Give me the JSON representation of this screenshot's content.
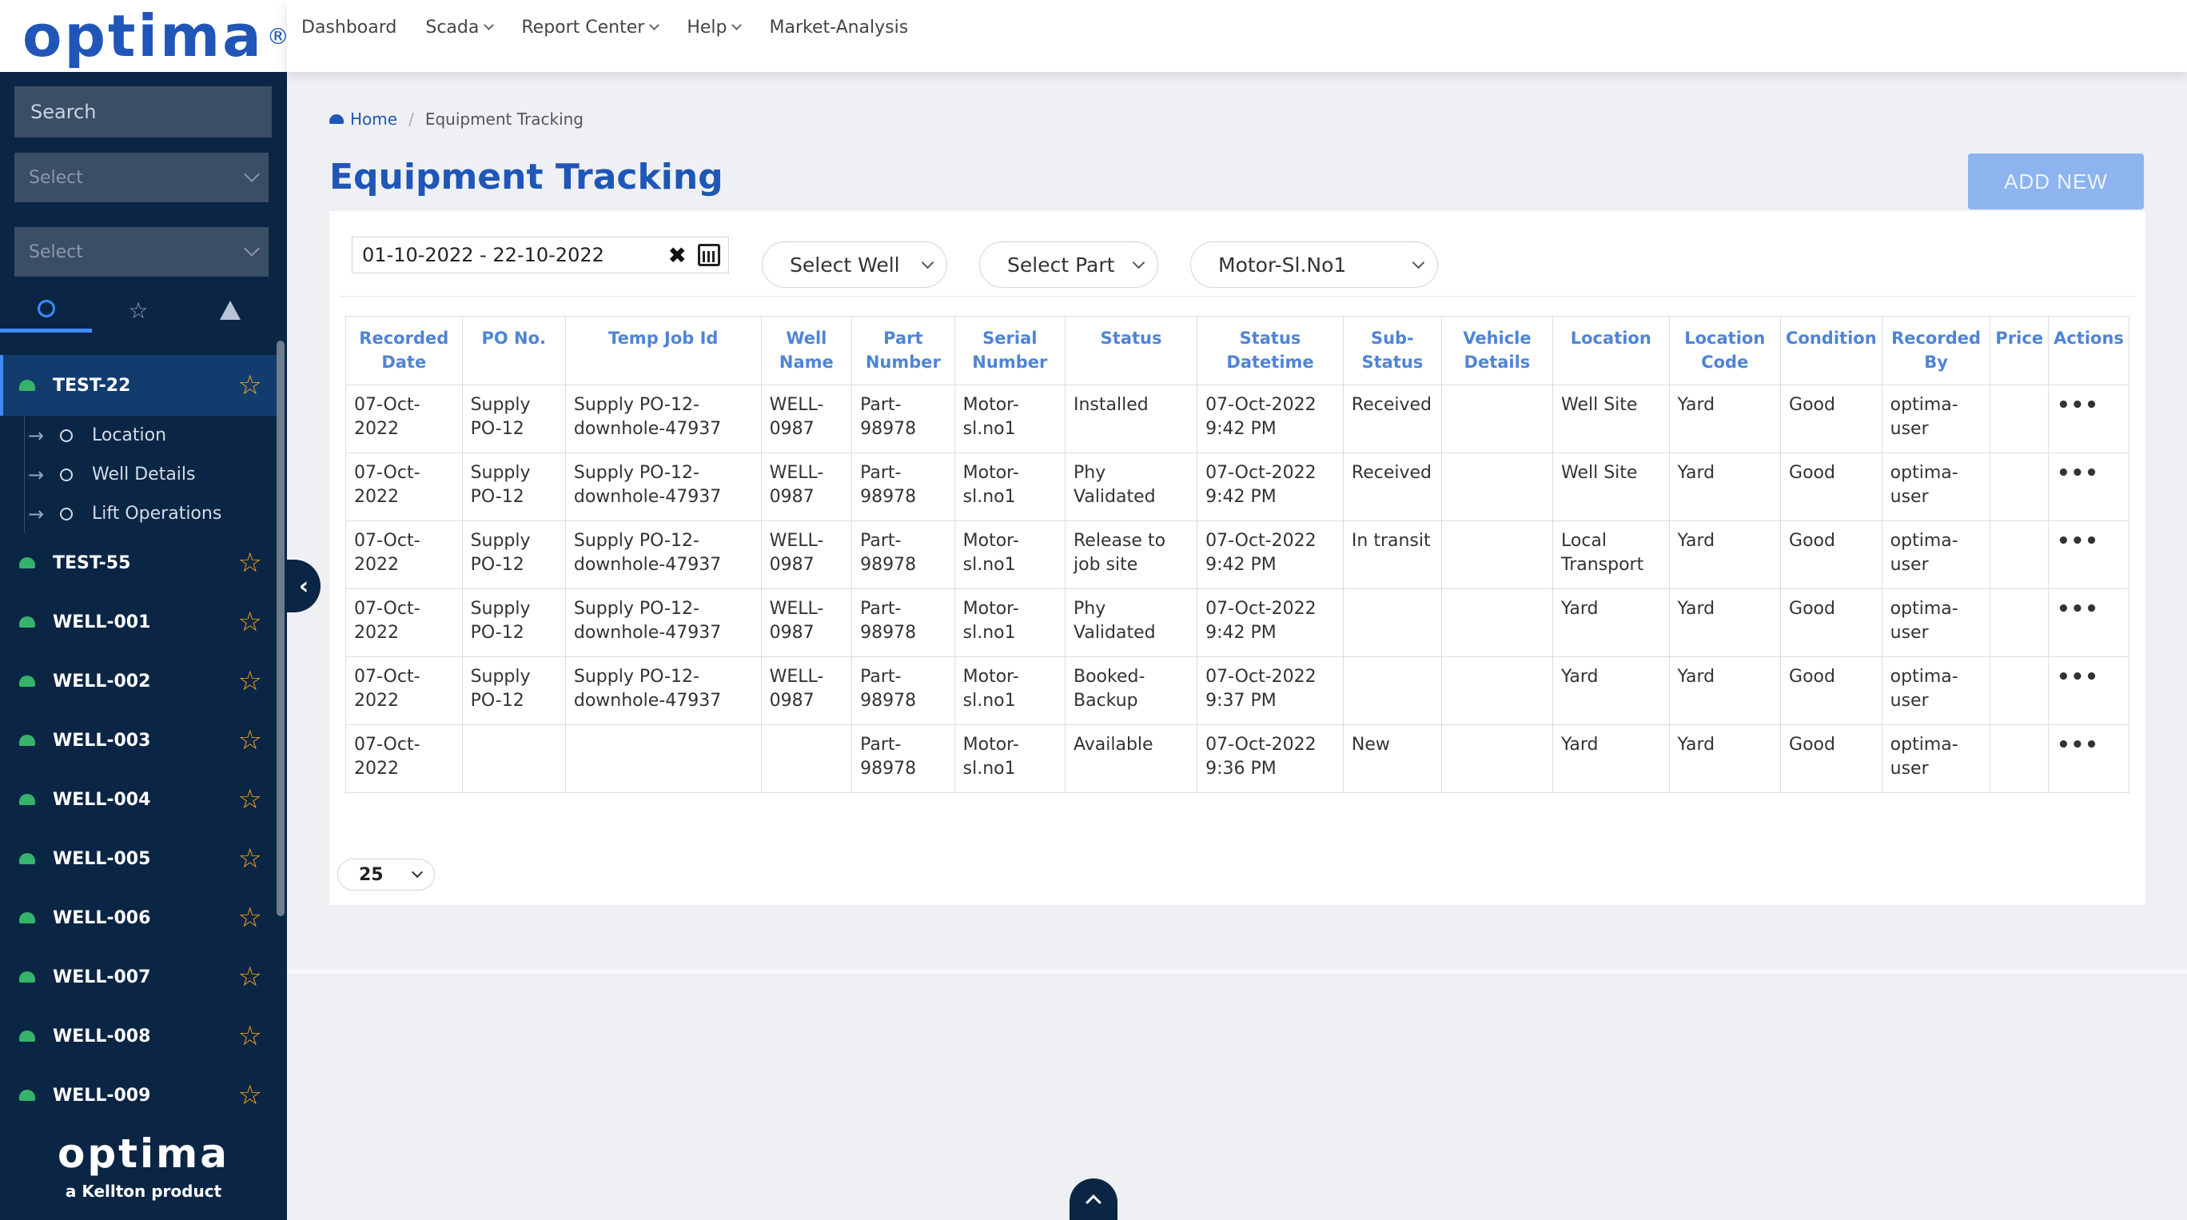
{
  "brand": {
    "logo": "optima",
    "reg": "®",
    "tagline": "a Kellton product"
  },
  "sidebar": {
    "search_placeholder": "Search",
    "select1": "Select",
    "select2": "Select",
    "wells": [
      {
        "name": "TEST-22"
      },
      {
        "name": "TEST-55"
      },
      {
        "name": "WELL-001"
      },
      {
        "name": "WELL-002"
      },
      {
        "name": "WELL-003"
      },
      {
        "name": "WELL-004"
      },
      {
        "name": "WELL-005"
      },
      {
        "name": "WELL-006"
      },
      {
        "name": "WELL-007"
      },
      {
        "name": "WELL-008"
      },
      {
        "name": "WELL-009"
      }
    ],
    "sub_items": [
      "Location",
      "Well Details",
      "Lift Operations"
    ]
  },
  "nav": {
    "dashboard": "Dashboard",
    "scada": "Scada",
    "report_center": "Report Center",
    "help": "Help",
    "market": "Market-Analysis"
  },
  "breadcrumb": {
    "home": "Home",
    "current": "Equipment Tracking"
  },
  "page": {
    "title": "Equipment Tracking",
    "add_new": "ADD NEW"
  },
  "filters": {
    "date_range": "01-10-2022 - 22-10-2022",
    "well": "Select Well",
    "part": "Select Part",
    "serial": "Motor-Sl.No1",
    "clear": "✖"
  },
  "table": {
    "headers": [
      "Recorded Date",
      "PO No.",
      "Temp Job Id",
      "Well Name",
      "Part Number",
      "Serial Number",
      "Status",
      "Status Datetime",
      "Sub-Status",
      "Vehicle Details",
      "Location",
      "Location Code",
      "Condition",
      "Recorded By",
      "Price",
      "Actions"
    ],
    "rows": [
      [
        "07-Oct-2022",
        "Supply PO-12",
        "Supply PO-12-downhole-47937",
        "WELL-0987",
        "Part-98978",
        "Motor-sl.no1",
        "Installed",
        "07-Oct-2022 9:42 PM",
        "Received",
        "",
        "Well Site",
        "Yard",
        "Good",
        "optima-user",
        "",
        "•••"
      ],
      [
        "07-Oct-2022",
        "Supply PO-12",
        "Supply PO-12-downhole-47937",
        "WELL-0987",
        "Part-98978",
        "Motor-sl.no1",
        "Phy Validated",
        "07-Oct-2022 9:42 PM",
        "Received",
        "",
        "Well Site",
        "Yard",
        "Good",
        "optima-user",
        "",
        "•••"
      ],
      [
        "07-Oct-2022",
        "Supply PO-12",
        "Supply PO-12-downhole-47937",
        "WELL-0987",
        "Part-98978",
        "Motor-sl.no1",
        "Release to job site",
        "07-Oct-2022 9:42 PM",
        "In transit",
        "",
        "Local Transport",
        "Yard",
        "Good",
        "optima-user",
        "",
        "•••"
      ],
      [
        "07-Oct-2022",
        "Supply PO-12",
        "Supply PO-12-downhole-47937",
        "WELL-0987",
        "Part-98978",
        "Motor-sl.no1",
        "Phy Validated",
        "07-Oct-2022 9:42 PM",
        "",
        "",
        "Yard",
        "Yard",
        "Good",
        "optima-user",
        "",
        "•••"
      ],
      [
        "07-Oct-2022",
        "Supply PO-12",
        "Supply PO-12-downhole-47937",
        "WELL-0987",
        "Part-98978",
        "Motor-sl.no1",
        "Booked-Backup",
        "07-Oct-2022 9:37 PM",
        "",
        "",
        "Yard",
        "Yard",
        "Good",
        "optima-user",
        "",
        "•••"
      ],
      [
        "07-Oct-2022",
        "",
        "",
        "",
        "Part-98978",
        "Motor-sl.no1",
        "Available",
        "07-Oct-2022 9:36 PM",
        "New",
        "",
        "Yard",
        "Yard",
        "Good",
        "optima-user",
        "",
        "•••"
      ]
    ]
  },
  "pagination": {
    "page_size": "25"
  },
  "colors": {
    "brand_blue": "#1f56b8",
    "sidebar_bg": "#0b2545",
    "star": "#f2a31b",
    "accent": "#3d8bff"
  }
}
